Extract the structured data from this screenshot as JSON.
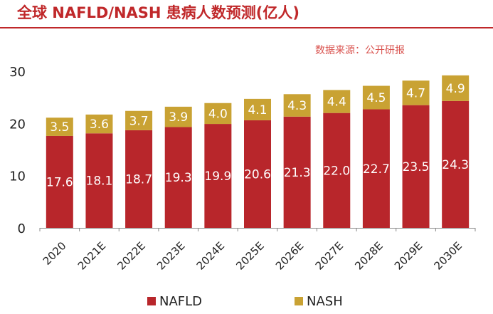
{
  "chart_data": {
    "type": "bar",
    "stacked": true,
    "title": "全球 NAFLD/NASH 患病人数预测(亿人)",
    "source_note": "数据来源：公开研报",
    "categories": [
      "2020",
      "2021E",
      "2022E",
      "2023E",
      "2024E",
      "2025E",
      "2026E",
      "2027E",
      "2028E",
      "2029E",
      "2030E"
    ],
    "series": [
      {
        "name": "NAFLD",
        "color": "#b8262b",
        "values": [
          17.6,
          18.1,
          18.7,
          19.3,
          19.9,
          20.6,
          21.3,
          22.0,
          22.7,
          23.5,
          24.3
        ],
        "labels": [
          "17.6",
          "18.1",
          "18.7",
          "19.3",
          "19.9",
          "20.6",
          "21.3",
          "22.0",
          "22.7",
          "23.5",
          "24.3"
        ]
      },
      {
        "name": "NASH",
        "color": "#c9a233",
        "values": [
          3.5,
          3.6,
          3.7,
          3.9,
          4.0,
          4.1,
          4.3,
          4.4,
          4.5,
          4.7,
          4.9
        ],
        "labels": [
          "3.5",
          "3.6",
          "3.7",
          "3.9",
          "4.0",
          "4.1",
          "4.3",
          "4.4",
          "4.5",
          "4.7",
          "4.9"
        ]
      }
    ],
    "ylim": [
      0,
      30
    ],
    "yticks": [
      "0",
      "10",
      "20",
      "30"
    ],
    "xlabel": "",
    "ylabel": "",
    "legend": "bottom-center",
    "grid": false
  }
}
